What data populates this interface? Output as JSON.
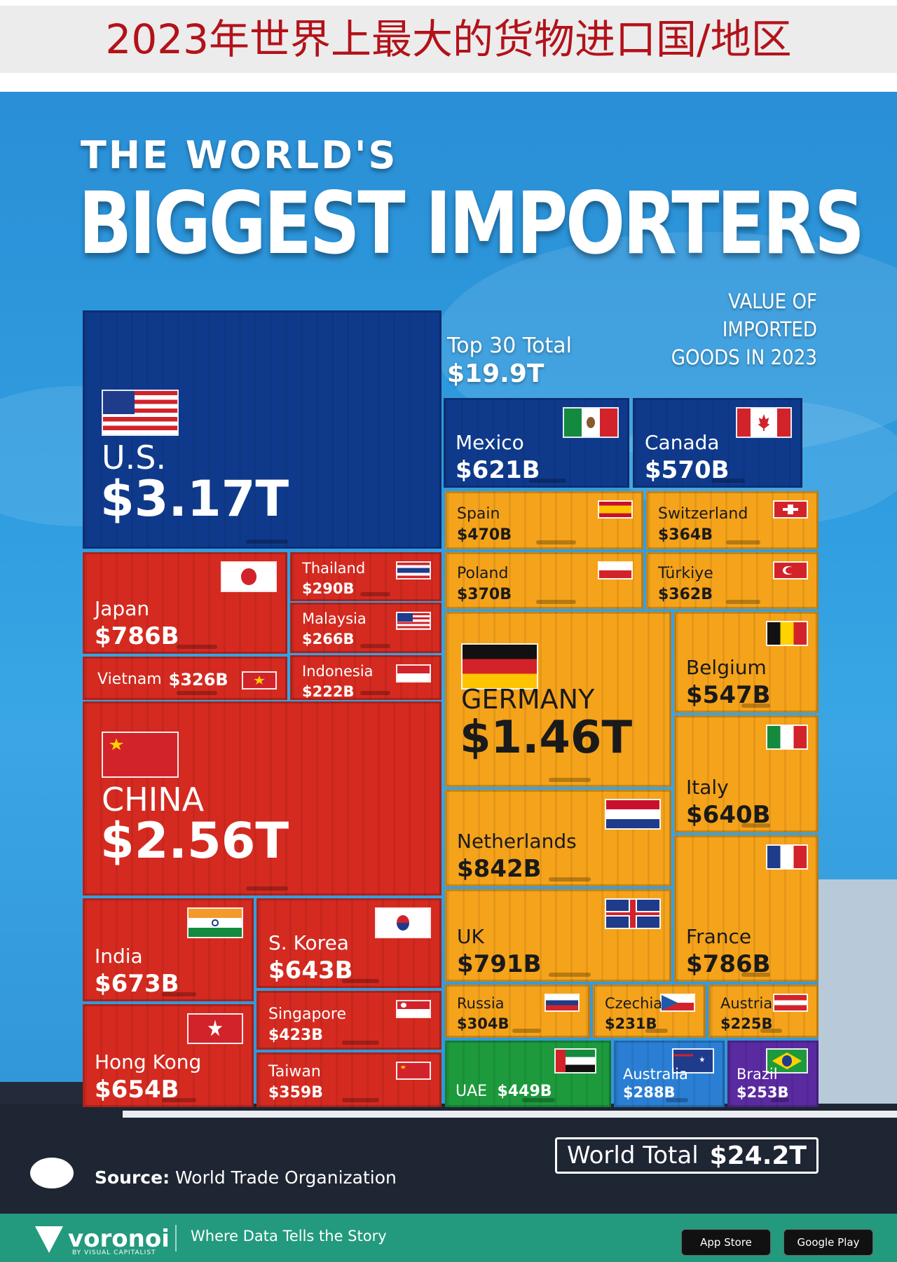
{
  "header": {
    "cn_title": "2023年世界上最大的货物进口国/地区"
  },
  "poster": {
    "kicker": "THE WORLD'S",
    "headline": "BIGGEST IMPORTERS",
    "subtitle_line1": "VALUE OF IMPORTED",
    "subtitle_line2": "GOODS IN 2023",
    "top30_label": "Top 30 Total",
    "top30_value": "$19.9T",
    "world_label": "World Total",
    "world_value": "$24.2T",
    "source_label": "Source:",
    "source_text": "World Trade Organization",
    "brand": "voronoi",
    "brand_sub": "BY VISUAL CAPITALIST",
    "tagline": "Where Data Tells the Story",
    "store1": "App Store",
    "store2": "Google Play"
  },
  "colors": {
    "navy": "#0f3a8c",
    "red": "#d52a20",
    "orange": "#f5a31a",
    "green": "#1c9a3c",
    "blue": "#2a7fd4",
    "purple": "#5a2aa0"
  },
  "chart_data": {
    "type": "treemap",
    "title": "BIGGEST IMPORTERS",
    "subtitle": "VALUE OF IMPORTED GOODS IN 2023",
    "series": [
      {
        "name": "U.S.",
        "label": "$3.17T",
        "value": 3170
      },
      {
        "name": "CHINA",
        "label": "$2.56T",
        "value": 2560
      },
      {
        "name": "GERMANY",
        "label": "$1.46T",
        "value": 1460
      },
      {
        "name": "Netherlands",
        "label": "$842B",
        "value": 842
      },
      {
        "name": "UK",
        "label": "$791B",
        "value": 791
      },
      {
        "name": "Japan",
        "label": "$786B",
        "value": 786
      },
      {
        "name": "France",
        "label": "$786B",
        "value": 786
      },
      {
        "name": "India",
        "label": "$673B",
        "value": 673
      },
      {
        "name": "Hong Kong",
        "label": "$654B",
        "value": 654
      },
      {
        "name": "S. Korea",
        "label": "$643B",
        "value": 643
      },
      {
        "name": "Italy",
        "label": "$640B",
        "value": 640
      },
      {
        "name": "Mexico",
        "label": "$621B",
        "value": 621
      },
      {
        "name": "Canada",
        "label": "$570B",
        "value": 570
      },
      {
        "name": "Belgium",
        "label": "$547B",
        "value": 547
      },
      {
        "name": "Spain",
        "label": "$470B",
        "value": 470
      },
      {
        "name": "UAE",
        "label": "$449B",
        "value": 449
      },
      {
        "name": "Singapore",
        "label": "$423B",
        "value": 423
      },
      {
        "name": "Poland",
        "label": "$370B",
        "value": 370
      },
      {
        "name": "Switzerland",
        "label": "$364B",
        "value": 364
      },
      {
        "name": "Türkiye",
        "label": "$362B",
        "value": 362
      },
      {
        "name": "Taiwan",
        "label": "$359B",
        "value": 359
      },
      {
        "name": "Vietnam",
        "label": "$326B",
        "value": 326
      },
      {
        "name": "Russia",
        "label": "$304B",
        "value": 304
      },
      {
        "name": "Thailand",
        "label": "$290B",
        "value": 290
      },
      {
        "name": "Australia",
        "label": "$288B",
        "value": 288
      },
      {
        "name": "Malaysia",
        "label": "$266B",
        "value": 266
      },
      {
        "name": "Brazil",
        "label": "$253B",
        "value": 253
      },
      {
        "name": "Czechia",
        "label": "$231B",
        "value": 231
      },
      {
        "name": "Austria",
        "label": "$225B",
        "value": 225
      },
      {
        "name": "Indonesia",
        "label": "$222B",
        "value": 222
      }
    ],
    "top30_total": "$19.9T",
    "world_total": "$24.2T"
  }
}
